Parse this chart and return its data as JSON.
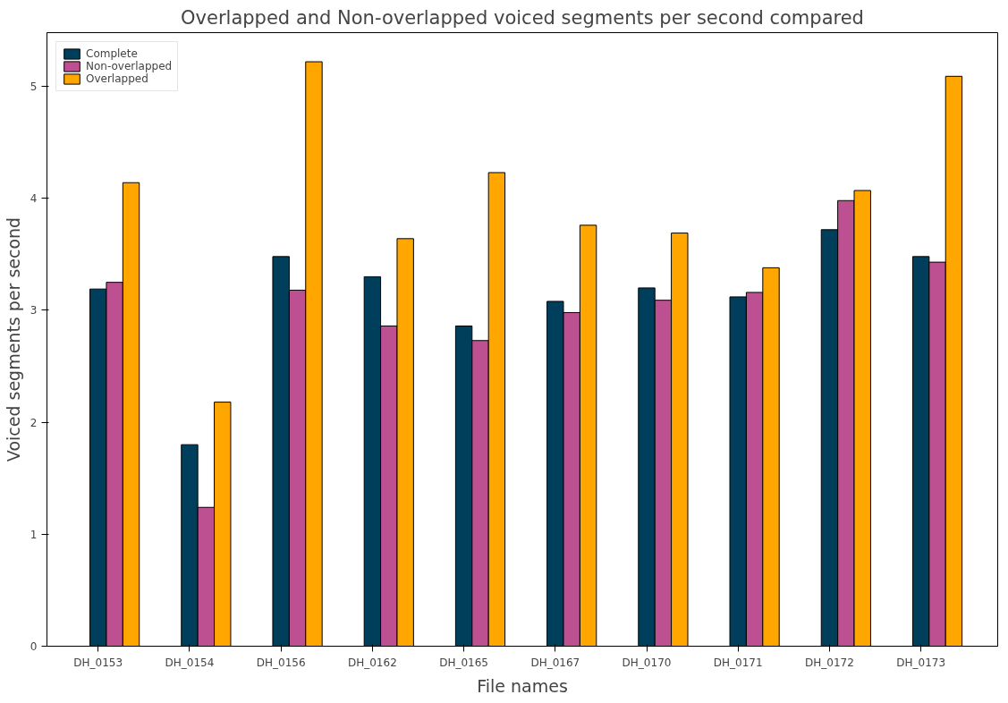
{
  "chart_data": {
    "type": "bar",
    "title": "Overlapped and Non-overlapped voiced segments per second compared",
    "xlabel": "File names",
    "ylabel": "Voiced segments per second",
    "categories": [
      "DH_0153",
      "DH_0154",
      "DH_0156",
      "DH_0162",
      "DH_0165",
      "DH_0167",
      "DH_0170",
      "DH_0171",
      "DH_0172",
      "DH_0173"
    ],
    "series": [
      {
        "name": "Complete",
        "color": "#003f5c",
        "values": [
          3.19,
          1.8,
          3.48,
          3.3,
          2.86,
          3.08,
          3.2,
          3.12,
          3.72,
          3.48
        ]
      },
      {
        "name": "Non-overlapped",
        "color": "#bc5090",
        "values": [
          3.25,
          1.24,
          3.18,
          2.86,
          2.73,
          2.98,
          3.09,
          3.16,
          3.98,
          3.43
        ]
      },
      {
        "name": "Overlapped",
        "color": "#ffa600",
        "values": [
          4.14,
          2.18,
          5.22,
          3.64,
          4.23,
          3.76,
          3.69,
          3.38,
          4.07,
          5.09
        ]
      }
    ],
    "ylim": [
      0,
      5.48
    ],
    "yticks": [
      0,
      1,
      2,
      3,
      4,
      5
    ],
    "grid": false,
    "legend": "top left"
  }
}
